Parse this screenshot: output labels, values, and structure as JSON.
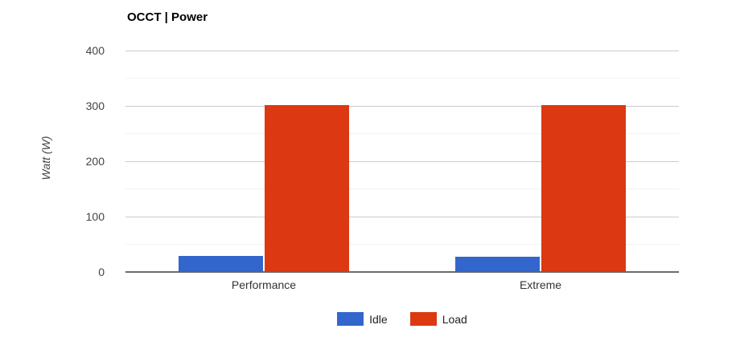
{
  "chart_data": {
    "type": "bar",
    "title": "OCCT | Power",
    "xlabel": "",
    "ylabel": "Watt (W)",
    "categories": [
      "Performance",
      "Extreme"
    ],
    "series": [
      {
        "name": "Idle",
        "color": "#3366CC",
        "values": [
          29,
          27
        ]
      },
      {
        "name": "Load",
        "color": "#DC3912",
        "values": [
          301,
          301
        ]
      }
    ],
    "ylim": [
      0,
      400
    ],
    "ytick_step_major": 100,
    "ytick_step_minor": 50,
    "grid": true,
    "legend_position": "bottom"
  }
}
